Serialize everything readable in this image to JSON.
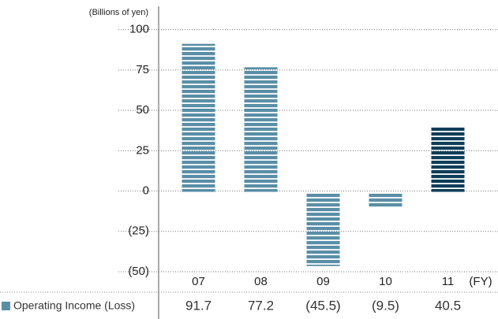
{
  "chart_data": {
    "type": "bar",
    "y_axis_label": "(Billions of yen)",
    "x_axis_label": "(FY)",
    "categories": [
      "07",
      "08",
      "09",
      "10",
      "11"
    ],
    "series": [
      {
        "name": "Operating Income (Loss)",
        "color": "#5a8ea7",
        "colors": [
          "#5a8ea7",
          "#5a8ea7",
          "#5a8ea7",
          "#5a8ea7",
          "#0e3e58"
        ],
        "values": [
          91.7,
          77.2,
          -45.5,
          -9.5,
          40.5
        ],
        "value_labels": [
          "91.7",
          "77.2",
          "(45.5)",
          "(9.5)",
          "40.5"
        ]
      }
    ],
    "ylim": [
      -50,
      113
    ],
    "yticks": [
      {
        "value": -50,
        "label": "(50)"
      },
      {
        "value": -25,
        "label": "(25)"
      },
      0,
      25,
      50,
      75,
      100
    ],
    "grid": true
  }
}
